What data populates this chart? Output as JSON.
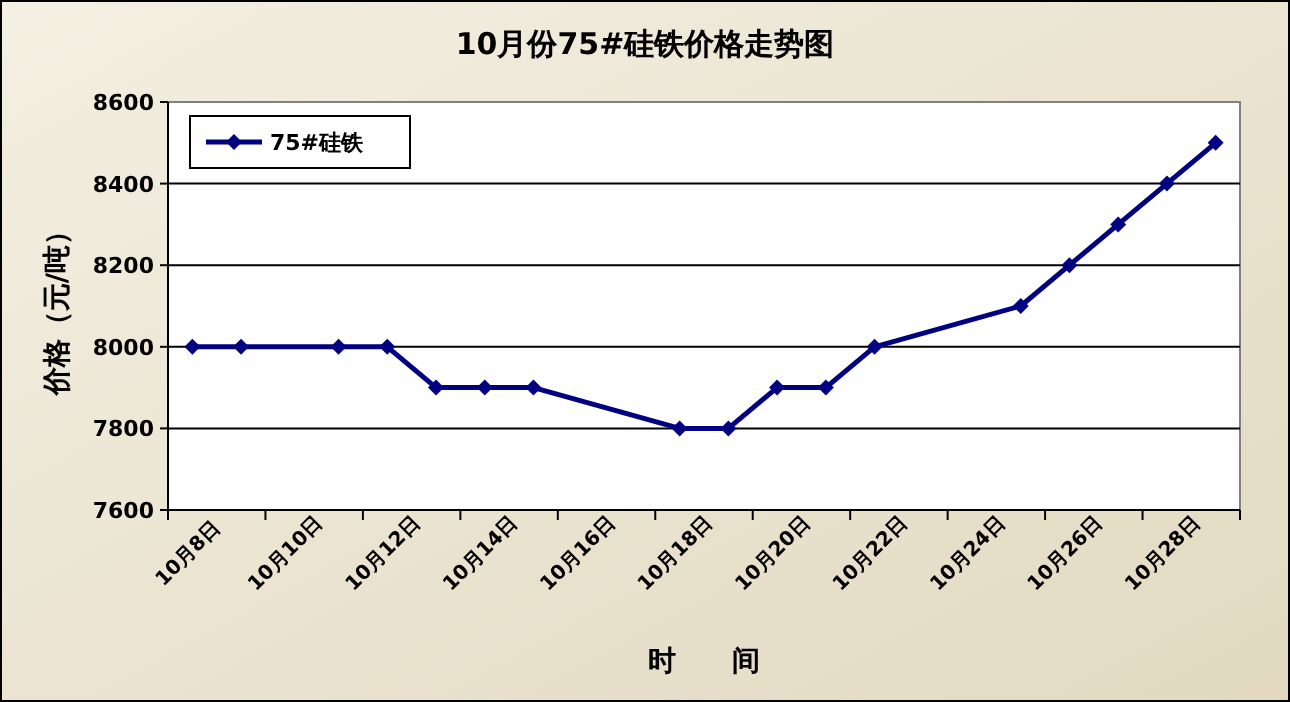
{
  "chart_data": {
    "type": "line",
    "title": "10月份75#硅铁价格走势图",
    "xlabel": "时　　间",
    "ylabel": "价格（元/吨）",
    "categories": [
      "10月8日",
      null,
      "10月10日",
      null,
      "10月12日",
      null,
      "10月14日",
      null,
      "10月16日",
      null,
      "10月18日",
      null,
      "10月20日",
      null,
      "10月22日",
      null,
      "10月24日",
      null,
      "10月26日",
      null,
      "10月28日",
      null
    ],
    "series": [
      {
        "name": "75#硅铁",
        "color": "#000080",
        "values": [
          8000,
          8000,
          null,
          8000,
          8000,
          7900,
          7900,
          7900,
          null,
          null,
          7800,
          7800,
          7900,
          7900,
          8000,
          null,
          null,
          8100,
          8200,
          8300,
          8400,
          8500
        ]
      }
    ],
    "ylim": [
      7600,
      8600
    ],
    "yticks": [
      7600,
      7800,
      8000,
      8200,
      8400,
      8600
    ],
    "grid": "y",
    "legend": "top left",
    "marker": "diamond"
  }
}
